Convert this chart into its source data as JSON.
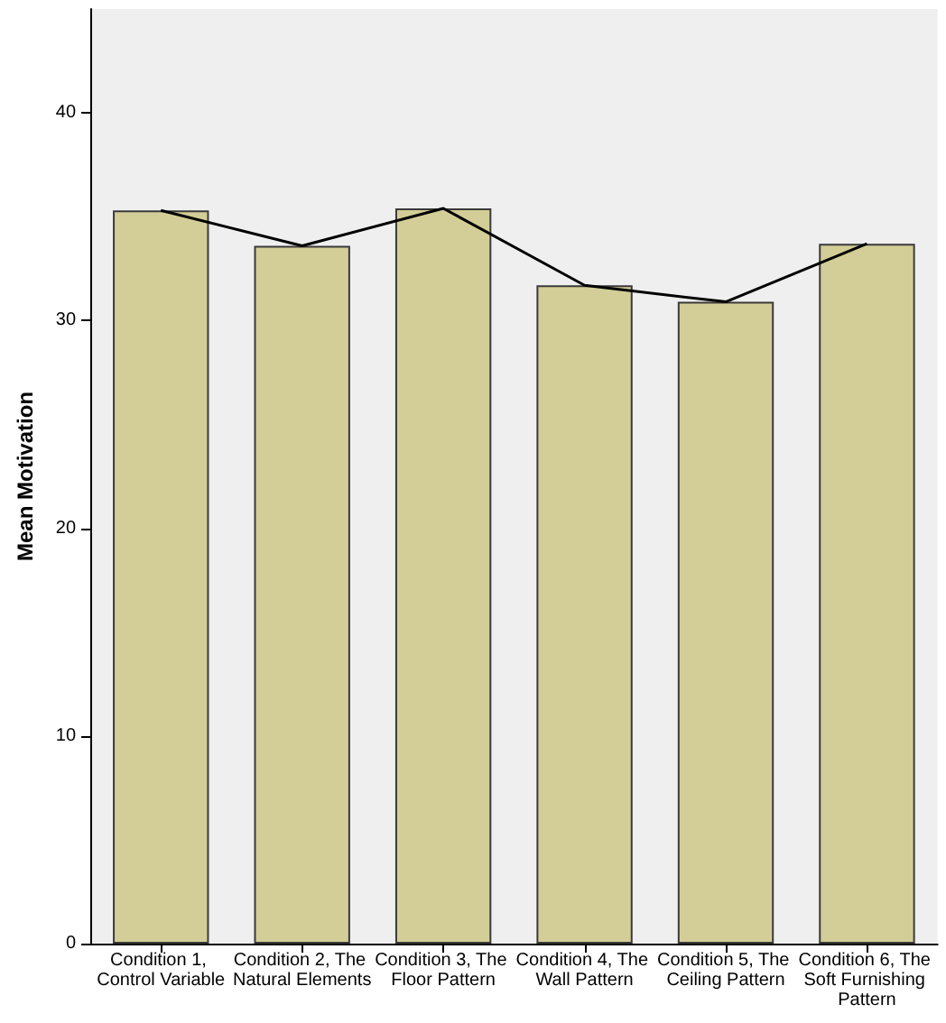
{
  "chart_data": {
    "type": "bar",
    "ylabel": "Mean Motivation",
    "categories": [
      "Condition 1, Control Variable",
      "Condition 2, The Natural Elements",
      "Condition 3, The Floor Pattern",
      "Condition 4, The Wall Pattern",
      "Condition 5, The Ceiling Pattern",
      "Condition 6, The Soft Furnishing Pattern"
    ],
    "series": [
      {
        "color": "#d3ce97",
        "values": [
          35.3,
          33.6,
          35.4,
          31.7,
          30.9,
          33.7
        ]
      },
      {
        "type": "line",
        "color": "#000000",
        "values": [
          35.3,
          33.6,
          35.4,
          31.7,
          30.9,
          33.7
        ]
      }
    ],
    "ylim": [
      0,
      45
    ],
    "yticks": [
      0,
      10,
      20,
      30,
      40
    ],
    "grid": false,
    "marker": "none",
    "line_style": "solid"
  }
}
